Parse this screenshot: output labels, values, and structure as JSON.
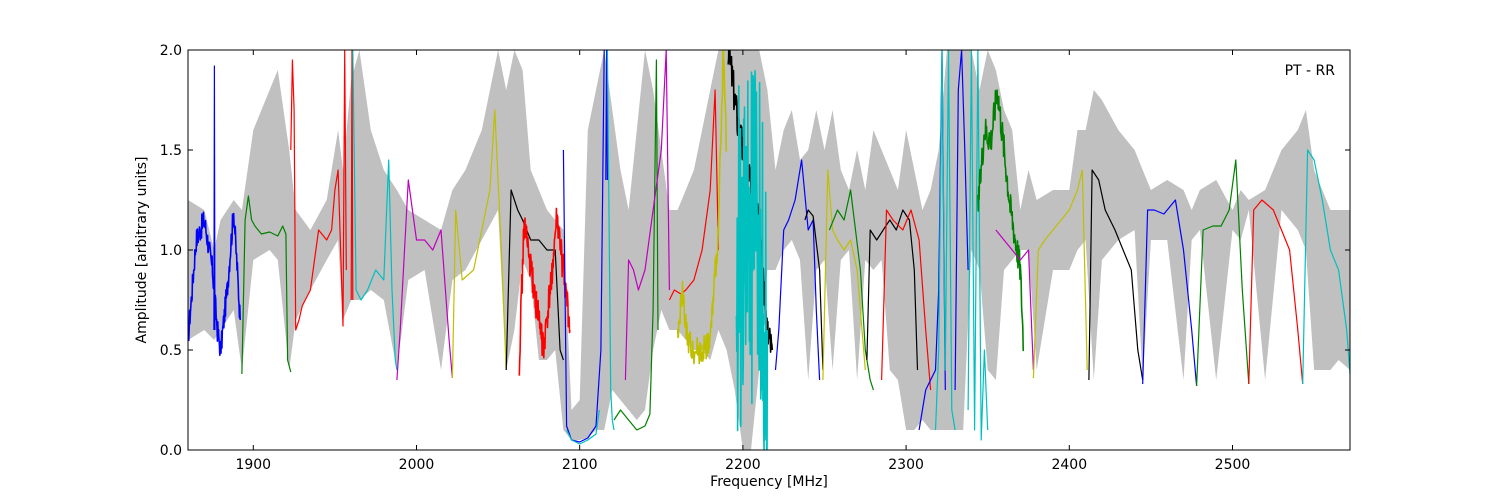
{
  "chart_data": {
    "type": "line",
    "title": "",
    "annotation": "PT - RR",
    "xlabel": "Frequency [MHz]",
    "ylabel": "Amplitude [arbitrary units]",
    "xlim": [
      1860,
      2572
    ],
    "ylim": [
      0.0,
      2.0
    ],
    "xticks": [
      1900,
      2000,
      2100,
      2200,
      2300,
      2400,
      2500
    ],
    "xtick_labels": [
      "1900",
      "2000",
      "2100",
      "2200",
      "2300",
      "2400",
      "2500"
    ],
    "yticks": [
      0.0,
      0.5,
      1.0,
      1.5,
      2.0
    ],
    "ytick_labels": [
      "0.0",
      "0.5",
      "1.0",
      "1.5",
      "2.0"
    ],
    "grid": false,
    "legend": "none",
    "envelope": {
      "color": "#c0c0c0",
      "x": [
        1860,
        1870,
        1876,
        1880,
        1888,
        1893,
        1900,
        1910,
        1915,
        1922,
        1926,
        1935,
        1945,
        1952,
        1955,
        1960,
        1965,
        1972,
        1980,
        1988,
        1995,
        2005,
        2015,
        2022,
        2030,
        2040,
        2050,
        2055,
        2060,
        2065,
        2070,
        2075,
        2080,
        2085,
        2090,
        2095,
        2100,
        2105,
        2110,
        2115,
        2120,
        2125,
        2130,
        2135,
        2140,
        2145,
        2150,
        2155,
        2160,
        2165,
        2170,
        2175,
        2180,
        2185,
        2190,
        2195,
        2200,
        2205,
        2210,
        2215,
        2220,
        2225,
        2230,
        2235,
        2240,
        2245,
        2250,
        2255,
        2260,
        2265,
        2270,
        2275,
        2280,
        2285,
        2290,
        2295,
        2300,
        2305,
        2310,
        2315,
        2320,
        2325,
        2330,
        2335,
        2340,
        2345,
        2350,
        2355,
        2360,
        2365,
        2370,
        2375,
        2380,
        2390,
        2400,
        2405,
        2410,
        2415,
        2420,
        2430,
        2440,
        2445,
        2450,
        2460,
        2470,
        2475,
        2480,
        2490,
        2500,
        2505,
        2510,
        2520,
        2530,
        2540,
        2545,
        2550,
        2555,
        2560,
        2565,
        2572
      ],
      "upper": [
        1.25,
        1.2,
        1.0,
        1.15,
        1.25,
        1.2,
        1.6,
        1.8,
        1.9,
        1.5,
        1.2,
        1.1,
        1.25,
        1.6,
        1.4,
        1.85,
        2.0,
        1.6,
        1.4,
        1.3,
        1.2,
        1.15,
        1.1,
        1.3,
        1.4,
        1.6,
        2.0,
        1.8,
        2.0,
        1.9,
        1.4,
        1.3,
        1.2,
        1.15,
        1.1,
        0.2,
        0.25,
        1.6,
        1.8,
        2.0,
        1.7,
        1.4,
        1.2,
        1.6,
        2.0,
        1.8,
        1.5,
        1.2,
        1.2,
        1.3,
        1.4,
        1.6,
        1.8,
        2.0,
        2.0,
        2.0,
        2.0,
        2.0,
        2.0,
        1.8,
        1.4,
        1.6,
        1.7,
        1.45,
        1.5,
        1.7,
        1.5,
        1.7,
        1.4,
        1.3,
        1.5,
        1.3,
        1.6,
        1.5,
        1.4,
        1.3,
        1.6,
        1.4,
        1.2,
        1.3,
        1.5,
        2.0,
        2.0,
        2.0,
        2.0,
        1.8,
        2.0,
        1.9,
        1.7,
        1.6,
        1.2,
        1.4,
        1.25,
        1.3,
        1.3,
        1.6,
        1.6,
        1.8,
        1.75,
        1.6,
        1.5,
        1.4,
        1.3,
        1.35,
        1.3,
        1.2,
        1.3,
        1.35,
        1.2,
        1.3,
        1.25,
        1.3,
        1.5,
        1.6,
        1.7,
        1.4,
        1.3,
        1.2,
        1.2,
        1.2
      ],
      "lower": [
        0.55,
        0.6,
        0.55,
        0.6,
        0.7,
        0.4,
        0.95,
        1.0,
        0.95,
        0.4,
        0.65,
        0.8,
        0.95,
        1.05,
        0.65,
        0.75,
        0.75,
        0.8,
        0.75,
        0.4,
        0.85,
        0.9,
        0.4,
        0.85,
        0.9,
        1.05,
        1.2,
        0.4,
        0.6,
        0.95,
        0.85,
        0.45,
        0.45,
        0.5,
        0.1,
        0.05,
        0.05,
        0.06,
        0.1,
        0.1,
        0.3,
        0.25,
        0.2,
        0.15,
        0.2,
        0.5,
        0.7,
        0.6,
        0.6,
        0.55,
        0.5,
        0.5,
        0.45,
        0.6,
        0.5,
        0.3,
        0.0,
        0.0,
        0.4,
        0.9,
        0.9,
        1.0,
        1.05,
        0.95,
        0.35,
        0.9,
        0.95,
        0.4,
        0.95,
        1.0,
        0.35,
        0.95,
        0.9,
        0.95,
        0.4,
        0.35,
        0.1,
        0.1,
        0.15,
        0.1,
        0.1,
        0.1,
        0.1,
        0.1,
        1.0,
        0.9,
        0.4,
        0.35,
        0.9,
        0.95,
        1.0,
        1.0,
        0.4,
        0.9,
        0.9,
        1.0,
        1.05,
        0.35,
        0.95,
        1.05,
        1.1,
        0.35,
        1.05,
        1.05,
        0.35,
        1.05,
        1.1,
        0.35,
        1.1,
        1.05,
        1.2,
        0.35,
        1.2,
        1.1,
        1.0,
        0.4,
        0.4,
        0.4,
        0.45,
        0.4
      ]
    },
    "series": [
      {
        "color": "#0000ff",
        "noisy": 0.06,
        "x": [
          1860,
          1865,
          1870,
          1875,
          1878,
          1880,
          1884,
          1888,
          1892
        ],
        "y": [
          0.55,
          1.05,
          1.15,
          0.9,
          0.6,
          0.5,
          0.8,
          1.2,
          0.65
        ]
      },
      {
        "color": "#0000ff",
        "x": [
          1875.9,
          1876.2,
          1876.5
        ],
        "y": [
          0.6,
          1.92,
          0.6
        ]
      },
      {
        "color": "#008000",
        "x": [
          1893,
          1895,
          1897,
          1899,
          1901,
          1905,
          1910,
          1915,
          1918,
          1920,
          1921,
          1923
        ],
        "y": [
          0.38,
          1.15,
          1.27,
          1.15,
          1.12,
          1.08,
          1.09,
          1.07,
          1.12,
          1.08,
          0.45,
          0.39
        ]
      },
      {
        "color": "#ff0000",
        "x": [
          1923,
          1924,
          1925,
          1926,
          1928,
          1930,
          1935,
          1940,
          1945,
          1948,
          1950,
          1952,
          1955,
          1956,
          1957
        ],
        "y": [
          1.5,
          1.95,
          1.7,
          0.6,
          0.65,
          0.72,
          0.8,
          1.1,
          1.05,
          1.1,
          1.3,
          1.4,
          0.62,
          2.0,
          0.9
        ]
      },
      {
        "color": "#ff0000",
        "x": [
          1960,
          1960.5,
          1961
        ],
        "y": [
          0.75,
          2.0,
          0.75
        ]
      },
      {
        "color": "#00bfbf",
        "x": [
          1961,
          1963,
          1966,
          1970,
          1975,
          1980,
          1983,
          1985,
          1987,
          1988
        ],
        "y": [
          2.0,
          0.8,
          0.75,
          0.8,
          0.9,
          0.85,
          1.45,
          0.8,
          0.45,
          0.4
        ]
      },
      {
        "color": "#bf00bf",
        "x": [
          1988,
          1990,
          1995,
          2000,
          2005,
          2010,
          2015,
          2020,
          2022
        ],
        "y": [
          0.35,
          0.6,
          1.35,
          1.05,
          1.05,
          1.0,
          1.1,
          0.55,
          0.36
        ]
      },
      {
        "color": "#bfbf00",
        "x": [
          2022,
          2024,
          2028,
          2035,
          2040,
          2045,
          2048,
          2052,
          2055
        ],
        "y": [
          0.36,
          1.2,
          0.85,
          0.9,
          1.1,
          1.3,
          1.7,
          1.0,
          0.4
        ]
      },
      {
        "color": "#000000",
        "x": [
          2055,
          2058,
          2062,
          2065,
          2070,
          2075,
          2080,
          2085,
          2088,
          2090
        ],
        "y": [
          0.4,
          1.3,
          1.2,
          1.15,
          1.05,
          1.05,
          1.0,
          1.0,
          0.5,
          0.45
        ]
      },
      {
        "color": "#ff0000",
        "noisy": 0.08,
        "x": [
          2063,
          2066,
          2070,
          2075,
          2078,
          2082,
          2086,
          2090,
          2094
        ],
        "y": [
          0.45,
          1.15,
          0.9,
          0.65,
          0.5,
          0.8,
          1.15,
          0.9,
          0.6
        ]
      },
      {
        "color": "#0000ff",
        "x": [
          2090,
          2092,
          2095,
          2100,
          2105,
          2110,
          2113,
          2115
        ],
        "y": [
          1.5,
          0.12,
          0.05,
          0.04,
          0.06,
          0.12,
          0.5,
          2.0
        ]
      },
      {
        "color": "#00bfbf",
        "x": [
          2092,
          2095,
          2100,
          2105,
          2110,
          2112
        ],
        "y": [
          0.1,
          0.05,
          0.03,
          0.05,
          0.08,
          0.2
        ]
      },
      {
        "color": "#0000ff",
        "x": [
          2116,
          2116.5,
          2117
        ],
        "y": [
          1.35,
          2.0,
          1.35
        ]
      },
      {
        "color": "#00bfbf",
        "x": [
          2117,
          2119,
          2120,
          2121
        ],
        "y": [
          2.0,
          0.3,
          0.15,
          0.1
        ]
      },
      {
        "color": "#008000",
        "x": [
          2121,
          2125,
          2130,
          2135,
          2140,
          2143,
          2145,
          2147,
          2148
        ],
        "y": [
          0.15,
          0.2,
          0.15,
          0.1,
          0.12,
          0.18,
          0.7,
          1.95,
          0.6
        ]
      },
      {
        "color": "#bf00bf",
        "x": [
          2128,
          2130,
          2133,
          2136,
          2140,
          2145,
          2150,
          2153,
          2155
        ],
        "y": [
          0.35,
          0.95,
          0.9,
          0.8,
          0.9,
          1.2,
          1.5,
          2.0,
          0.8
        ]
      },
      {
        "color": "#ff0000",
        "x": [
          2155,
          2158,
          2162,
          2165,
          2170,
          2175,
          2180,
          2183,
          2185
        ],
        "y": [
          0.75,
          0.8,
          0.78,
          0.8,
          0.85,
          1.0,
          1.3,
          1.8,
          1.0
        ]
      },
      {
        "color": "#bfbf00",
        "noisy": 0.07,
        "x": [
          2160,
          2163,
          2166,
          2170,
          2175,
          2180,
          2185,
          2188,
          2190
        ],
        "y": [
          0.55,
          0.8,
          0.55,
          0.5,
          0.5,
          0.55,
          1.1,
          2.0,
          1.5
        ]
      },
      {
        "color": "#000000",
        "noisy": 0.1,
        "x": [
          2191,
          2193,
          2196,
          2200,
          2205,
          2210,
          2213,
          2215,
          2218
        ],
        "y": [
          2.0,
          1.9,
          1.7,
          1.5,
          1.3,
          1.1,
          0.8,
          0.6,
          0.5
        ]
      },
      {
        "color": "#00bfbf",
        "noisy": 0.9,
        "x": [
          2196,
          2200,
          2205,
          2210,
          2215
        ],
        "y": [
          0.9,
          1.0,
          1.0,
          1.0,
          0.6
        ]
      },
      {
        "color": "#0000ff",
        "x": [
          2220,
          2222,
          2225,
          2228,
          2232,
          2236,
          2240,
          2243,
          2245,
          2247
        ],
        "y": [
          0.4,
          0.6,
          1.1,
          1.15,
          1.25,
          1.45,
          1.1,
          1.15,
          0.7,
          0.35
        ]
      },
      {
        "color": "#000000",
        "x": [
          2238,
          2240,
          2243,
          2247,
          2249
        ],
        "y": [
          1.15,
          1.2,
          1.17,
          0.9,
          0.4
        ]
      },
      {
        "color": "#bfbf00",
        "x": [
          2249,
          2252,
          2255,
          2258,
          2262,
          2266,
          2270,
          2273,
          2275
        ],
        "y": [
          0.35,
          1.4,
          1.1,
          1.05,
          1.0,
          1.05,
          0.9,
          0.6,
          0.4
        ]
      },
      {
        "color": "#008000",
        "x": [
          2253,
          2258,
          2262,
          2266,
          2269,
          2272,
          2275,
          2278,
          2280
        ],
        "y": [
          1.1,
          1.2,
          1.15,
          1.3,
          1.1,
          0.9,
          0.5,
          0.35,
          0.3
        ]
      },
      {
        "color": "#000000",
        "x": [
          2276,
          2278,
          2282,
          2286,
          2290,
          2294,
          2298,
          2302,
          2305,
          2307
        ],
        "y": [
          0.45,
          1.1,
          1.05,
          1.1,
          1.15,
          1.1,
          1.2,
          1.15,
          0.9,
          0.4
        ]
      },
      {
        "color": "#ff0000",
        "x": [
          2285,
          2288,
          2292,
          2298,
          2303,
          2308,
          2312,
          2315
        ],
        "y": [
          0.35,
          1.2,
          1.15,
          1.1,
          1.2,
          1.05,
          0.6,
          0.3
        ]
      },
      {
        "color": "#0000ff",
        "x": [
          2308,
          2312,
          2315,
          2318,
          2320,
          2322,
          2324
        ],
        "y": [
          0.1,
          0.3,
          0.35,
          0.4,
          0.8,
          2.0,
          0.3
        ]
      },
      {
        "color": "#00bfbf",
        "x": [
          2318,
          2320,
          2322,
          2324,
          2326,
          2328,
          2330
        ],
        "y": [
          0.1,
          0.5,
          2.0,
          0.4,
          2.0,
          0.2,
          0.1
        ]
      },
      {
        "color": "#0000ff",
        "x": [
          2330,
          2332,
          2334,
          2336,
          2338
        ],
        "y": [
          0.3,
          1.8,
          2.0,
          1.5,
          0.9
        ]
      },
      {
        "color": "#00bfbf",
        "x": [
          2338,
          2340,
          2342,
          2344,
          2346,
          2348,
          2350
        ],
        "y": [
          0.2,
          2.0,
          0.1,
          2.0,
          0.05,
          0.5,
          0.1
        ]
      },
      {
        "color": "#008000",
        "noisy": 0.08,
        "x": [
          2344,
          2348,
          2352,
          2356,
          2360,
          2364,
          2368,
          2370,
          2372
        ],
        "y": [
          1.2,
          1.6,
          1.55,
          1.8,
          1.5,
          1.2,
          1.0,
          0.9,
          0.5
        ]
      },
      {
        "color": "#bf00bf",
        "x": [
          2355,
          2360,
          2365,
          2370,
          2375,
          2378
        ],
        "y": [
          1.1,
          1.05,
          1.0,
          0.95,
          1.0,
          0.4
        ]
      },
      {
        "color": "#bfbf00",
        "x": [
          2378,
          2381,
          2385,
          2390,
          2395,
          2400,
          2405,
          2408,
          2411
        ],
        "y": [
          0.36,
          1.0,
          1.05,
          1.1,
          1.15,
          1.2,
          1.3,
          1.4,
          0.4
        ]
      },
      {
        "color": "#000000",
        "x": [
          2412,
          2414,
          2418,
          2422,
          2428,
          2433,
          2438,
          2442,
          2445
        ],
        "y": [
          0.35,
          1.4,
          1.35,
          1.2,
          1.1,
          1.0,
          0.9,
          0.5,
          0.35
        ]
      },
      {
        "color": "#0000ff",
        "x": [
          2445,
          2448,
          2452,
          2458,
          2465,
          2470,
          2475,
          2478
        ],
        "y": [
          0.33,
          1.2,
          1.2,
          1.18,
          1.25,
          1.0,
          0.6,
          0.32
        ]
      },
      {
        "color": "#008000",
        "x": [
          2478,
          2482,
          2488,
          2493,
          2498,
          2502,
          2506,
          2510
        ],
        "y": [
          0.32,
          1.1,
          1.12,
          1.12,
          1.2,
          1.45,
          0.8,
          0.33
        ]
      },
      {
        "color": "#ff0000",
        "x": [
          2510,
          2513,
          2518,
          2525,
          2530,
          2535,
          2540,
          2543
        ],
        "y": [
          0.33,
          1.2,
          1.25,
          1.2,
          1.1,
          1.0,
          0.6,
          0.33
        ]
      },
      {
        "color": "#00bfbf",
        "x": [
          2543,
          2546,
          2550,
          2555,
          2560,
          2565,
          2570,
          2572
        ],
        "y": [
          0.33,
          1.5,
          1.45,
          1.25,
          1.0,
          0.9,
          0.6,
          0.38
        ]
      }
    ]
  }
}
